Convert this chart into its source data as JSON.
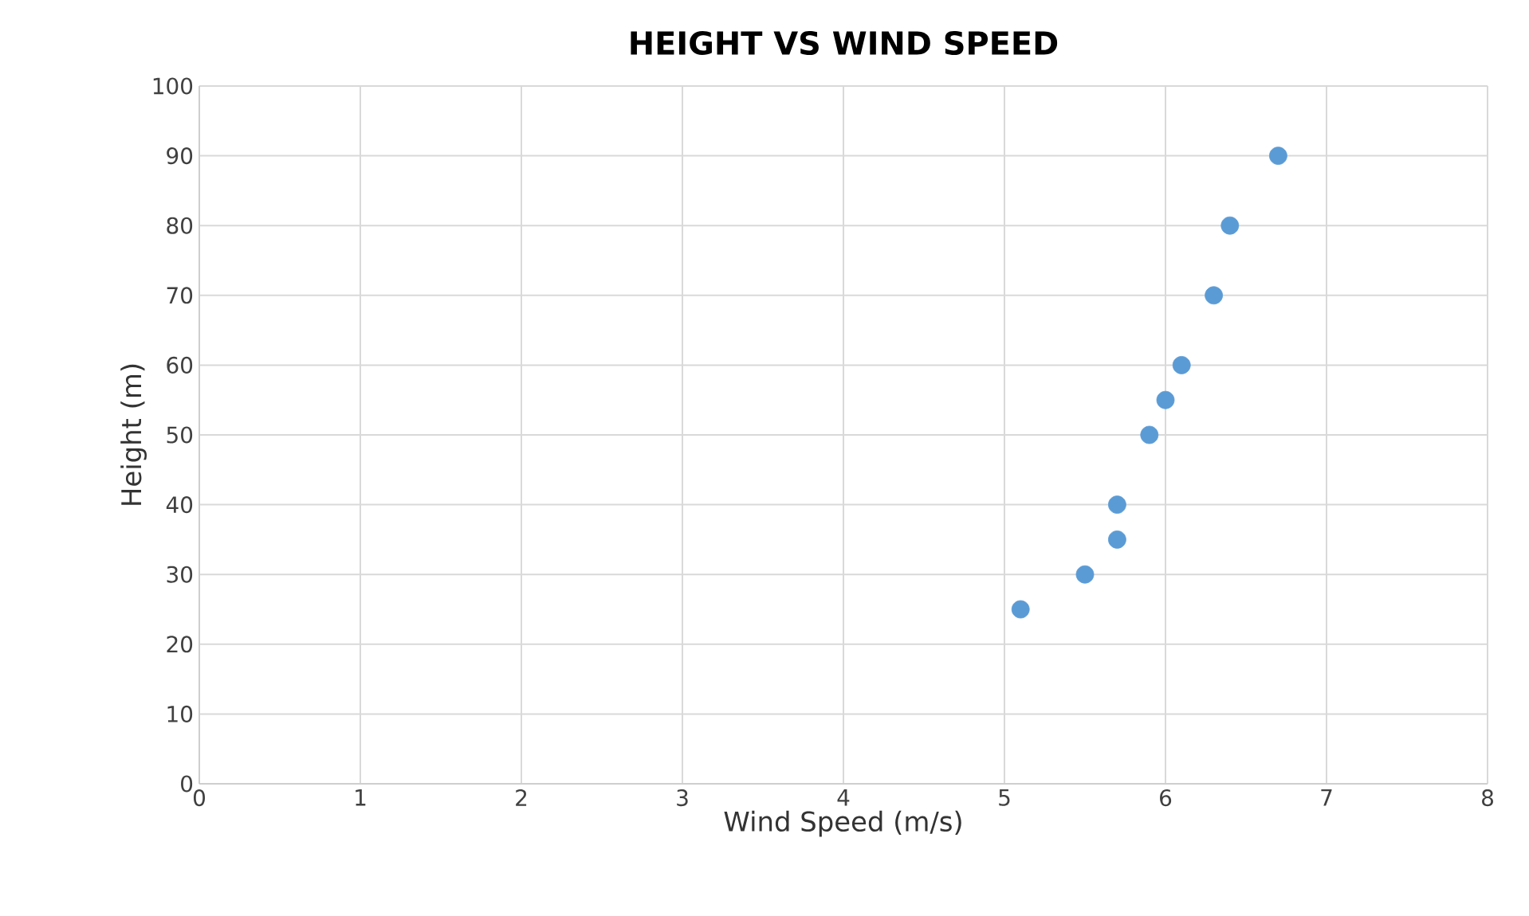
{
  "chart_data": {
    "type": "scatter",
    "title": "HEIGHT VS WIND SPEED",
    "xlabel": "Wind Speed (m/s)",
    "ylabel": "Height (m)",
    "x": [
      5.1,
      5.5,
      5.7,
      5.7,
      5.9,
      6.0,
      6.1,
      6.3,
      6.4,
      6.7
    ],
    "values": [
      25,
      30,
      35,
      40,
      50,
      55,
      60,
      70,
      80,
      90
    ],
    "color": "#5b9bd5",
    "marker": "circle",
    "grid": true,
    "xlim": [
      0,
      8
    ],
    "xticks": [
      0,
      1,
      2,
      3,
      4,
      5,
      6,
      7,
      8
    ],
    "ylim": [
      0,
      100
    ],
    "yticks": [
      0,
      10,
      20,
      30,
      40,
      50,
      60,
      70,
      80,
      90,
      100
    ]
  }
}
